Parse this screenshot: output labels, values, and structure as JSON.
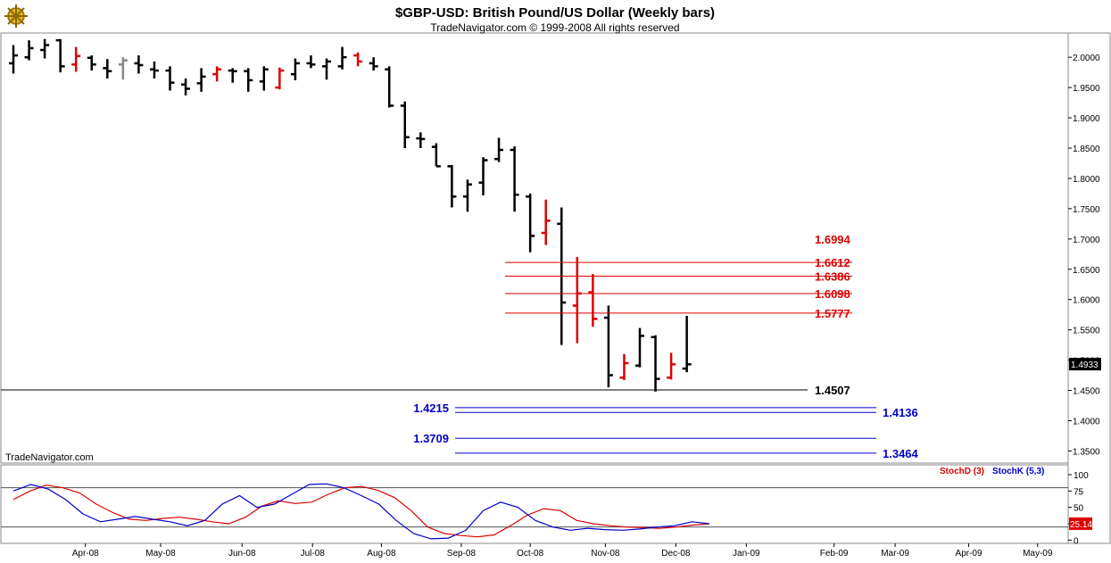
{
  "header": {
    "title": "$GBP-USD:  British Pound/US Dollar  (Weekly bars)",
    "copyright": "TradeNavigator.com © 1999-2008 All rights reserved"
  },
  "watermark": "TradeNavigator.com",
  "logo": {
    "icon": "ship-wheel-logo-icon"
  },
  "colors": {
    "up": "#000000",
    "down": "#dd0000",
    "neutral": "#888888",
    "resistance": "#dd0000",
    "support": "#0000cc",
    "stochD": "#dd0000",
    "stochK": "#0000cc"
  },
  "chart_data": [
    {
      "type": "ohlc",
      "title": "$GBP-USD:  British Pound/US Dollar  (Weekly bars)",
      "ylim": [
        1.33,
        2.04
      ],
      "y_ticks": [
        "2.0000",
        "1.9500",
        "1.9000",
        "1.8500",
        "1.8000",
        "1.7500",
        "1.7000",
        "1.6500",
        "1.6000",
        "1.5500",
        "1.5000",
        "1.4500",
        "1.4000",
        "1.3500"
      ],
      "x_ticks": [
        "Apr-08",
        "May-08",
        "Jun-08",
        "Jul-08",
        "Aug-08",
        "Sep-08",
        "Oct-08",
        "Nov-08",
        "Dec-08",
        "Jan-09",
        "Feb-09",
        "Mar-09",
        "Apr-09",
        "May-09"
      ],
      "last_price": "1.4933",
      "bars": [
        {
          "o": 1.99,
          "h": 2.02,
          "l": 1.973,
          "c": 2.003,
          "color": "up"
        },
        {
          "o": 2.0,
          "h": 2.028,
          "l": 1.995,
          "c": 2.015,
          "color": "up"
        },
        {
          "o": 2.012,
          "h": 2.03,
          "l": 1.998,
          "c": 2.02,
          "color": "up"
        },
        {
          "o": 2.028,
          "h": 2.03,
          "l": 1.975,
          "c": 1.985,
          "color": "up"
        },
        {
          "o": 1.988,
          "h": 2.017,
          "l": 1.976,
          "c": 2.002,
          "color": "down"
        },
        {
          "o": 1.999,
          "h": 2.003,
          "l": 1.978,
          "c": 1.988,
          "color": "up"
        },
        {
          "o": 1.982,
          "h": 1.997,
          "l": 1.965,
          "c": 1.977,
          "color": "up"
        },
        {
          "o": 1.988,
          "h": 2.0,
          "l": 1.963,
          "c": 1.995,
          "color": "neutral"
        },
        {
          "o": 1.99,
          "h": 2.003,
          "l": 1.973,
          "c": 1.987,
          "color": "up"
        },
        {
          "o": 1.98,
          "h": 1.993,
          "l": 1.965,
          "c": 1.978,
          "color": "up"
        },
        {
          "o": 1.978,
          "h": 1.985,
          "l": 1.945,
          "c": 1.958,
          "color": "up"
        },
        {
          "o": 1.955,
          "h": 1.965,
          "l": 1.937,
          "c": 1.948,
          "color": "up"
        },
        {
          "o": 1.957,
          "h": 1.982,
          "l": 1.943,
          "c": 1.968,
          "color": "up"
        },
        {
          "o": 1.972,
          "h": 1.985,
          "l": 1.96,
          "c": 1.98,
          "color": "down"
        },
        {
          "o": 1.978,
          "h": 1.982,
          "l": 1.958,
          "c": 1.977,
          "color": "up"
        },
        {
          "o": 1.977,
          "h": 1.982,
          "l": 1.943,
          "c": 1.962,
          "color": "up"
        },
        {
          "o": 1.96,
          "h": 1.985,
          "l": 1.945,
          "c": 1.98,
          "color": "up"
        },
        {
          "o": 1.95,
          "h": 1.983,
          "l": 1.947,
          "c": 1.978,
          "color": "down"
        },
        {
          "o": 1.972,
          "h": 1.998,
          "l": 1.962,
          "c": 1.99,
          "color": "up"
        },
        {
          "o": 1.99,
          "h": 2.003,
          "l": 1.982,
          "c": 1.988,
          "color": "up"
        },
        {
          "o": 1.985,
          "h": 1.998,
          "l": 1.963,
          "c": 1.993,
          "color": "up"
        },
        {
          "o": 1.985,
          "h": 2.017,
          "l": 1.98,
          "c": 2.0,
          "color": "up"
        },
        {
          "o": 2.003,
          "h": 2.008,
          "l": 1.985,
          "c": 1.993,
          "color": "down"
        },
        {
          "o": 1.99,
          "h": 2.0,
          "l": 1.978,
          "c": 1.985,
          "color": "up"
        },
        {
          "o": 1.98,
          "h": 1.985,
          "l": 1.917,
          "c": 1.92,
          "color": "up"
        },
        {
          "o": 1.92,
          "h": 1.927,
          "l": 1.85,
          "c": 1.868,
          "color": "up"
        },
        {
          "o": 1.866,
          "h": 1.876,
          "l": 1.85,
          "c": 1.865,
          "color": "up"
        },
        {
          "o": 1.852,
          "h": 1.858,
          "l": 1.82,
          "c": 1.82,
          "color": "up"
        },
        {
          "o": 1.82,
          "h": 1.822,
          "l": 1.752,
          "c": 1.77,
          "color": "up"
        },
        {
          "o": 1.77,
          "h": 1.798,
          "l": 1.745,
          "c": 1.79,
          "color": "up"
        },
        {
          "o": 1.793,
          "h": 1.835,
          "l": 1.772,
          "c": 1.83,
          "color": "up"
        },
        {
          "o": 1.832,
          "h": 1.867,
          "l": 1.827,
          "c": 1.847,
          "color": "up"
        },
        {
          "o": 1.847,
          "h": 1.853,
          "l": 1.745,
          "c": 1.773,
          "color": "up"
        },
        {
          "o": 1.77,
          "h": 1.775,
          "l": 1.678,
          "c": 1.705,
          "color": "up"
        },
        {
          "o": 1.71,
          "h": 1.765,
          "l": 1.69,
          "c": 1.73,
          "color": "down"
        },
        {
          "o": 1.725,
          "h": 1.752,
          "l": 1.525,
          "c": 1.595,
          "color": "up"
        },
        {
          "o": 1.59,
          "h": 1.67,
          "l": 1.528,
          "c": 1.61,
          "color": "down"
        },
        {
          "o": 1.612,
          "h": 1.642,
          "l": 1.555,
          "c": 1.568,
          "color": "down"
        },
        {
          "o": 1.57,
          "h": 1.59,
          "l": 1.455,
          "c": 1.475,
          "color": "up"
        },
        {
          "o": 1.471,
          "h": 1.51,
          "l": 1.467,
          "c": 1.495,
          "color": "down"
        },
        {
          "o": 1.491,
          "h": 1.553,
          "l": 1.488,
          "c": 1.54,
          "color": "up"
        },
        {
          "o": 1.538,
          "h": 1.541,
          "l": 1.448,
          "c": 1.469,
          "color": "up"
        },
        {
          "o": 1.471,
          "h": 1.512,
          "l": 1.468,
          "c": 1.493,
          "color": "down"
        },
        {
          "o": 1.486,
          "h": 1.573,
          "l": 1.48,
          "c": 1.493,
          "color": "up"
        }
      ],
      "annotations": [
        {
          "value": 1.6994,
          "label": "1.6994",
          "color": "resistance",
          "line": false,
          "x_from": null,
          "label_side": "right"
        },
        {
          "value": 1.6612,
          "label": "1.6612",
          "color": "resistance",
          "line": true,
          "x_from": "Sep-08",
          "label_side": "right"
        },
        {
          "value": 1.6386,
          "label": "1.6386",
          "color": "resistance",
          "line": true,
          "x_from": "Sep-08",
          "label_side": "right"
        },
        {
          "value": 1.6098,
          "label": "1.6098",
          "color": "resistance",
          "line": true,
          "x_from": "Sep-08",
          "label_side": "right"
        },
        {
          "value": 1.5777,
          "label": "1.5777",
          "color": "resistance",
          "line": true,
          "x_from": "Sep-08",
          "label_side": "right"
        },
        {
          "value": 1.4507,
          "label": "1.4507",
          "color": "up",
          "line": true,
          "x_from": "start",
          "label_side": "right"
        },
        {
          "value": 1.4215,
          "label": "1.4215",
          "color": "support",
          "line": true,
          "x_from": "Sep-08",
          "label_side": "left"
        },
        {
          "value": 1.4136,
          "label": "1.4136",
          "color": "support",
          "line": true,
          "x_from": "Sep-08",
          "label_side": "right"
        },
        {
          "value": 1.3709,
          "label": "1.3709",
          "color": "support",
          "line": true,
          "x_from": "Sep-08",
          "label_side": "left"
        },
        {
          "value": 1.3464,
          "label": "1.3464",
          "color": "support",
          "line": true,
          "x_from": "Sep-08",
          "label_side": "right"
        }
      ]
    },
    {
      "type": "line",
      "legend": [
        "StochD (3)",
        "StochK (5,3)"
      ],
      "ylim": [
        -5,
        115
      ],
      "y_ticks": [
        "100",
        "75",
        "50",
        "25",
        "0"
      ],
      "reference_lines": [
        80,
        20
      ],
      "last_value": "25.14",
      "series": [
        {
          "name": "StochD (3)",
          "color": "stochD",
          "values": [
            62,
            75,
            84,
            80,
            72,
            55,
            42,
            32,
            30,
            33,
            35,
            32,
            28,
            25,
            35,
            52,
            60,
            56,
            58,
            70,
            80,
            82,
            76,
            65,
            45,
            20,
            10,
            7,
            5,
            8,
            22,
            38,
            48,
            45,
            30,
            25,
            22,
            20,
            19,
            18,
            20,
            23,
            25
          ]
        },
        {
          "name": "StochK (5,3)",
          "color": "stochK",
          "values": [
            75,
            85,
            78,
            62,
            40,
            28,
            32,
            36,
            32,
            28,
            22,
            30,
            55,
            68,
            50,
            55,
            70,
            85,
            86,
            80,
            68,
            55,
            30,
            10,
            2,
            3,
            15,
            45,
            58,
            50,
            30,
            20,
            15,
            18,
            16,
            15,
            17,
            20,
            22,
            28,
            25
          ]
        }
      ]
    }
  ]
}
